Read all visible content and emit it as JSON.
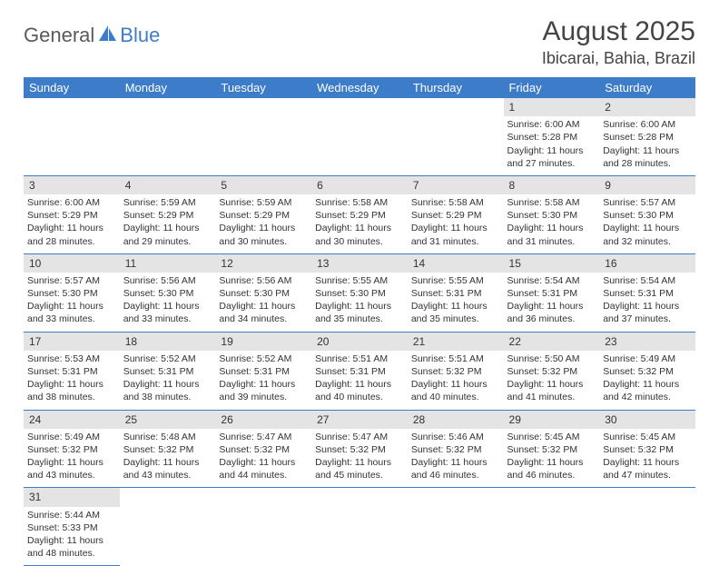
{
  "logo": {
    "part1": "General",
    "part2": "Blue"
  },
  "title": "August 2025",
  "location": "Ibicarai, Bahia, Brazil",
  "colors": {
    "header_bg": "#3d7cc9",
    "header_text": "#ffffff",
    "daynum_bg": "#e4e4e4",
    "border": "#3d7cc9",
    "text": "#333333",
    "logo_gray": "#5a5a5a",
    "logo_blue": "#3d7cc9"
  },
  "day_headers": [
    "Sunday",
    "Monday",
    "Tuesday",
    "Wednesday",
    "Thursday",
    "Friday",
    "Saturday"
  ],
  "weeks": [
    [
      null,
      null,
      null,
      null,
      null,
      {
        "n": "1",
        "sr": "Sunrise: 6:00 AM",
        "ss": "Sunset: 5:28 PM",
        "dl1": "Daylight: 11 hours",
        "dl2": "and 27 minutes."
      },
      {
        "n": "2",
        "sr": "Sunrise: 6:00 AM",
        "ss": "Sunset: 5:28 PM",
        "dl1": "Daylight: 11 hours",
        "dl2": "and 28 minutes."
      }
    ],
    [
      {
        "n": "3",
        "sr": "Sunrise: 6:00 AM",
        "ss": "Sunset: 5:29 PM",
        "dl1": "Daylight: 11 hours",
        "dl2": "and 28 minutes."
      },
      {
        "n": "4",
        "sr": "Sunrise: 5:59 AM",
        "ss": "Sunset: 5:29 PM",
        "dl1": "Daylight: 11 hours",
        "dl2": "and 29 minutes."
      },
      {
        "n": "5",
        "sr": "Sunrise: 5:59 AM",
        "ss": "Sunset: 5:29 PM",
        "dl1": "Daylight: 11 hours",
        "dl2": "and 30 minutes."
      },
      {
        "n": "6",
        "sr": "Sunrise: 5:58 AM",
        "ss": "Sunset: 5:29 PM",
        "dl1": "Daylight: 11 hours",
        "dl2": "and 30 minutes."
      },
      {
        "n": "7",
        "sr": "Sunrise: 5:58 AM",
        "ss": "Sunset: 5:29 PM",
        "dl1": "Daylight: 11 hours",
        "dl2": "and 31 minutes."
      },
      {
        "n": "8",
        "sr": "Sunrise: 5:58 AM",
        "ss": "Sunset: 5:30 PM",
        "dl1": "Daylight: 11 hours",
        "dl2": "and 31 minutes."
      },
      {
        "n": "9",
        "sr": "Sunrise: 5:57 AM",
        "ss": "Sunset: 5:30 PM",
        "dl1": "Daylight: 11 hours",
        "dl2": "and 32 minutes."
      }
    ],
    [
      {
        "n": "10",
        "sr": "Sunrise: 5:57 AM",
        "ss": "Sunset: 5:30 PM",
        "dl1": "Daylight: 11 hours",
        "dl2": "and 33 minutes."
      },
      {
        "n": "11",
        "sr": "Sunrise: 5:56 AM",
        "ss": "Sunset: 5:30 PM",
        "dl1": "Daylight: 11 hours",
        "dl2": "and 33 minutes."
      },
      {
        "n": "12",
        "sr": "Sunrise: 5:56 AM",
        "ss": "Sunset: 5:30 PM",
        "dl1": "Daylight: 11 hours",
        "dl2": "and 34 minutes."
      },
      {
        "n": "13",
        "sr": "Sunrise: 5:55 AM",
        "ss": "Sunset: 5:30 PM",
        "dl1": "Daylight: 11 hours",
        "dl2": "and 35 minutes."
      },
      {
        "n": "14",
        "sr": "Sunrise: 5:55 AM",
        "ss": "Sunset: 5:31 PM",
        "dl1": "Daylight: 11 hours",
        "dl2": "and 35 minutes."
      },
      {
        "n": "15",
        "sr": "Sunrise: 5:54 AM",
        "ss": "Sunset: 5:31 PM",
        "dl1": "Daylight: 11 hours",
        "dl2": "and 36 minutes."
      },
      {
        "n": "16",
        "sr": "Sunrise: 5:54 AM",
        "ss": "Sunset: 5:31 PM",
        "dl1": "Daylight: 11 hours",
        "dl2": "and 37 minutes."
      }
    ],
    [
      {
        "n": "17",
        "sr": "Sunrise: 5:53 AM",
        "ss": "Sunset: 5:31 PM",
        "dl1": "Daylight: 11 hours",
        "dl2": "and 38 minutes."
      },
      {
        "n": "18",
        "sr": "Sunrise: 5:52 AM",
        "ss": "Sunset: 5:31 PM",
        "dl1": "Daylight: 11 hours",
        "dl2": "and 38 minutes."
      },
      {
        "n": "19",
        "sr": "Sunrise: 5:52 AM",
        "ss": "Sunset: 5:31 PM",
        "dl1": "Daylight: 11 hours",
        "dl2": "and 39 minutes."
      },
      {
        "n": "20",
        "sr": "Sunrise: 5:51 AM",
        "ss": "Sunset: 5:31 PM",
        "dl1": "Daylight: 11 hours",
        "dl2": "and 40 minutes."
      },
      {
        "n": "21",
        "sr": "Sunrise: 5:51 AM",
        "ss": "Sunset: 5:32 PM",
        "dl1": "Daylight: 11 hours",
        "dl2": "and 40 minutes."
      },
      {
        "n": "22",
        "sr": "Sunrise: 5:50 AM",
        "ss": "Sunset: 5:32 PM",
        "dl1": "Daylight: 11 hours",
        "dl2": "and 41 minutes."
      },
      {
        "n": "23",
        "sr": "Sunrise: 5:49 AM",
        "ss": "Sunset: 5:32 PM",
        "dl1": "Daylight: 11 hours",
        "dl2": "and 42 minutes."
      }
    ],
    [
      {
        "n": "24",
        "sr": "Sunrise: 5:49 AM",
        "ss": "Sunset: 5:32 PM",
        "dl1": "Daylight: 11 hours",
        "dl2": "and 43 minutes."
      },
      {
        "n": "25",
        "sr": "Sunrise: 5:48 AM",
        "ss": "Sunset: 5:32 PM",
        "dl1": "Daylight: 11 hours",
        "dl2": "and 43 minutes."
      },
      {
        "n": "26",
        "sr": "Sunrise: 5:47 AM",
        "ss": "Sunset: 5:32 PM",
        "dl1": "Daylight: 11 hours",
        "dl2": "and 44 minutes."
      },
      {
        "n": "27",
        "sr": "Sunrise: 5:47 AM",
        "ss": "Sunset: 5:32 PM",
        "dl1": "Daylight: 11 hours",
        "dl2": "and 45 minutes."
      },
      {
        "n": "28",
        "sr": "Sunrise: 5:46 AM",
        "ss": "Sunset: 5:32 PM",
        "dl1": "Daylight: 11 hours",
        "dl2": "and 46 minutes."
      },
      {
        "n": "29",
        "sr": "Sunrise: 5:45 AM",
        "ss": "Sunset: 5:32 PM",
        "dl1": "Daylight: 11 hours",
        "dl2": "and 46 minutes."
      },
      {
        "n": "30",
        "sr": "Sunrise: 5:45 AM",
        "ss": "Sunset: 5:32 PM",
        "dl1": "Daylight: 11 hours",
        "dl2": "and 47 minutes."
      }
    ],
    [
      {
        "n": "31",
        "sr": "Sunrise: 5:44 AM",
        "ss": "Sunset: 5:33 PM",
        "dl1": "Daylight: 11 hours",
        "dl2": "and 48 minutes."
      },
      null,
      null,
      null,
      null,
      null,
      null
    ]
  ]
}
